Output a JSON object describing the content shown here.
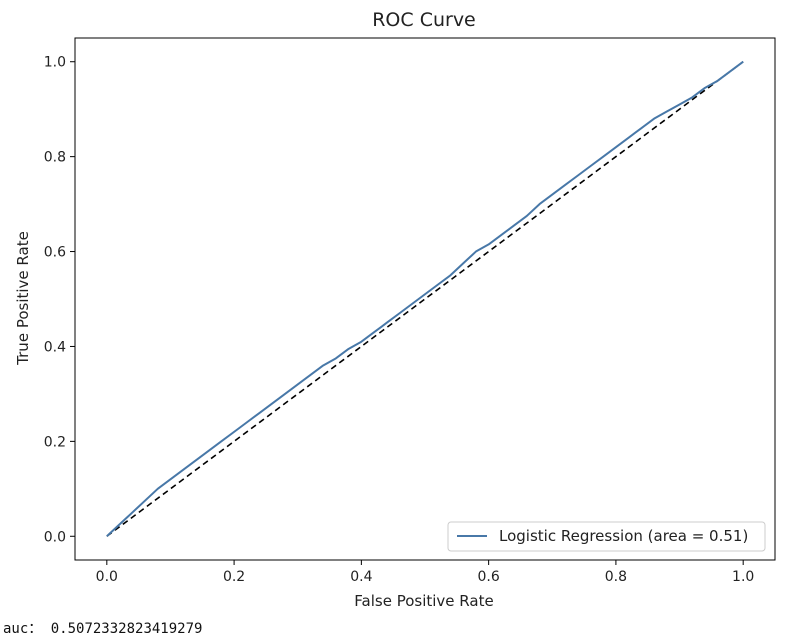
{
  "chart_data": {
    "type": "line",
    "title": "ROC Curve",
    "xlabel": "False Positive Rate",
    "ylabel": "True Positive Rate",
    "xlim": [
      -0.05,
      1.05
    ],
    "ylim": [
      -0.05,
      1.05
    ],
    "x_ticks": [
      0.0,
      0.2,
      0.4,
      0.6,
      0.8,
      1.0
    ],
    "x_tick_labels": [
      "0.0",
      "0.2",
      "0.4",
      "0.6",
      "0.8",
      "1.0"
    ],
    "y_ticks": [
      0.0,
      0.2,
      0.4,
      0.6,
      0.8,
      1.0
    ],
    "y_tick_labels": [
      "0.0",
      "0.2",
      "0.4",
      "0.6",
      "0.8",
      "1.0"
    ],
    "grid": false,
    "legend_position": "lower-right",
    "series": [
      {
        "name": "Logistic Regression (area = 0.51)",
        "color": "#4878a8",
        "style": "solid",
        "x": [
          0.0,
          0.02,
          0.04,
          0.06,
          0.08,
          0.1,
          0.12,
          0.14,
          0.16,
          0.18,
          0.2,
          0.22,
          0.24,
          0.26,
          0.28,
          0.3,
          0.32,
          0.34,
          0.36,
          0.38,
          0.4,
          0.42,
          0.44,
          0.46,
          0.48,
          0.5,
          0.52,
          0.54,
          0.56,
          0.58,
          0.6,
          0.62,
          0.64,
          0.66,
          0.68,
          0.7,
          0.72,
          0.74,
          0.76,
          0.78,
          0.8,
          0.82,
          0.84,
          0.86,
          0.88,
          0.9,
          0.92,
          0.94,
          0.96,
          0.98,
          1.0
        ],
        "y": [
          0.0,
          0.025,
          0.05,
          0.075,
          0.1,
          0.12,
          0.14,
          0.16,
          0.18,
          0.2,
          0.22,
          0.24,
          0.26,
          0.28,
          0.3,
          0.32,
          0.34,
          0.36,
          0.375,
          0.395,
          0.41,
          0.43,
          0.45,
          0.47,
          0.49,
          0.51,
          0.53,
          0.55,
          0.575,
          0.6,
          0.615,
          0.635,
          0.655,
          0.675,
          0.7,
          0.72,
          0.74,
          0.76,
          0.78,
          0.8,
          0.82,
          0.84,
          0.86,
          0.88,
          0.895,
          0.91,
          0.925,
          0.945,
          0.96,
          0.98,
          1.0
        ]
      },
      {
        "name": "",
        "color": "#000000",
        "style": "dashed",
        "x": [
          0.0,
          1.0
        ],
        "y": [
          0.0,
          1.0
        ]
      }
    ]
  },
  "output": {
    "prefix": "auc：",
    "value": "0.5072332823419279"
  }
}
